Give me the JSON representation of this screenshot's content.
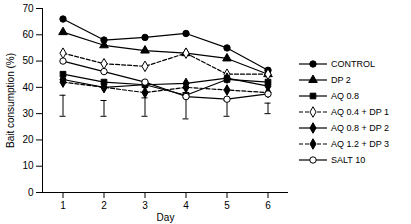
{
  "chart_data": {
    "type": "line",
    "x_label": "Day",
    "y_label": "Bait consumption (%)",
    "x": [
      1,
      2,
      3,
      4,
      5,
      6
    ],
    "xlim": [
      0.5,
      6.5
    ],
    "xticks": [
      1,
      2,
      3,
      4,
      5,
      6
    ],
    "ylim": [
      0,
      70
    ],
    "yticks": [
      0,
      10,
      20,
      30,
      40,
      50,
      60,
      70
    ],
    "grid": false,
    "legend": "right",
    "series": [
      {
        "name": "CONTROL",
        "color": "#000000",
        "marker": "circle",
        "line_style": "solid",
        "values": [
          66,
          58,
          59,
          60.5,
          55,
          46.5
        ]
      },
      {
        "name": "DP 2",
        "color": "#000000",
        "marker": "triangle",
        "line_style": "solid",
        "values": [
          61,
          56,
          54,
          53,
          51,
          45
        ]
      },
      {
        "name": "AQ 0.8",
        "color": "#000000",
        "marker": "square",
        "line_style": "solid",
        "values": [
          45,
          42,
          41,
          37,
          43,
          42
        ]
      },
      {
        "name": "AQ 0.4 + DP 1",
        "color": "#000000",
        "marker": "diamond-open",
        "line_style": "dashed",
        "values": [
          53,
          49,
          48,
          53,
          45,
          45
        ]
      },
      {
        "name": "AQ 0.8 + DP 2",
        "color": "#000000",
        "marker": "diamond",
        "line_style": "solid",
        "values": [
          43,
          40,
          41,
          41.5,
          43.5,
          40.5
        ]
      },
      {
        "name": "AQ 1.2 + DP 3",
        "color": "#000000",
        "marker": "diamond",
        "line_style": "dashed",
        "values": [
          42,
          40,
          38,
          40,
          39,
          38
        ]
      },
      {
        "name": "SALT 10",
        "color": "#000000",
        "marker": "circle-open",
        "line_style": "solid",
        "values": [
          50,
          46,
          42,
          36.5,
          35.5,
          37.5
        ]
      }
    ],
    "error_bars": {
      "x": [
        1,
        2,
        3,
        4,
        5,
        6
      ],
      "low": [
        29,
        29,
        29,
        28,
        29,
        30
      ],
      "high": [
        37,
        35,
        36,
        38,
        35,
        34
      ]
    }
  }
}
